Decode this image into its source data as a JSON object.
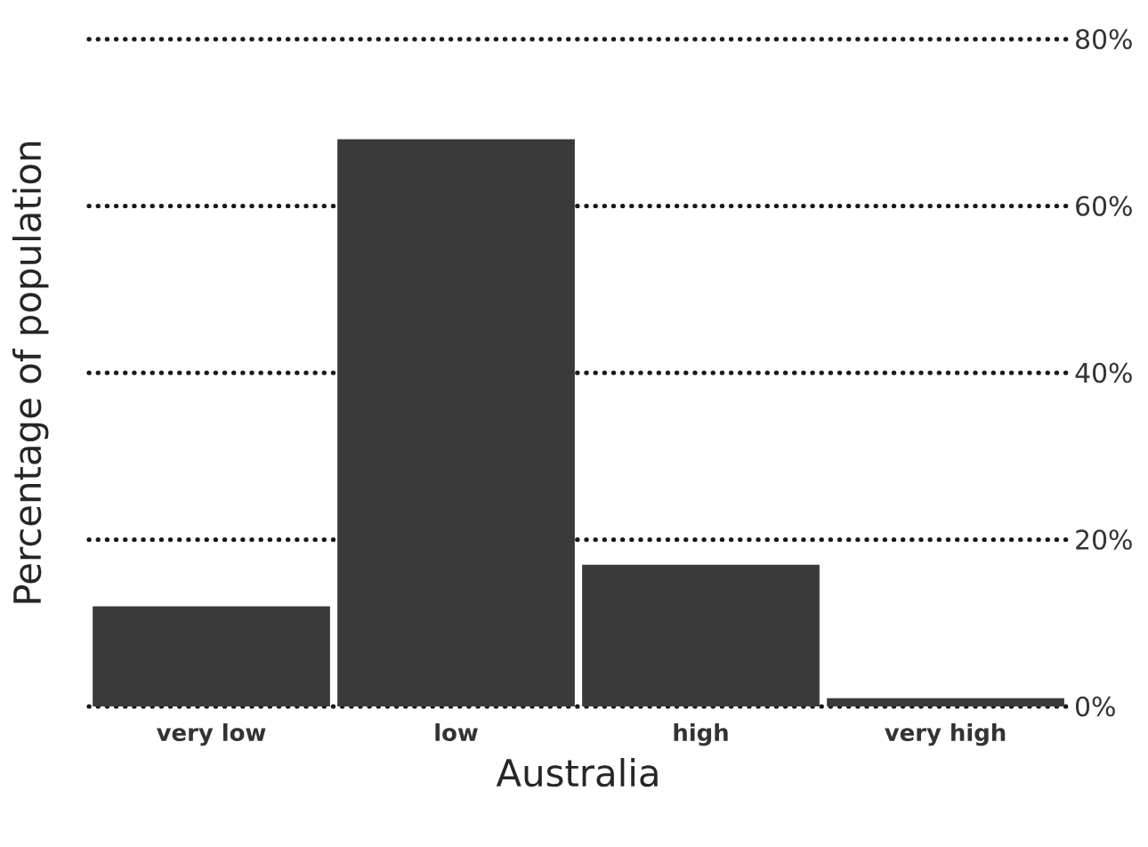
{
  "chart_data": {
    "type": "bar",
    "xlabel": "Australia",
    "ylabel": "Percentage of population",
    "categories": [
      "very low",
      "low",
      "high",
      "very high"
    ],
    "values": [
      12,
      68,
      17,
      1
    ],
    "color": "#3a3a3a",
    "ylim": [
      0,
      80
    ],
    "yticks": [
      {
        "value": 0,
        "label": "0%"
      },
      {
        "value": 20,
        "label": "20%"
      },
      {
        "value": 40,
        "label": "40%"
      },
      {
        "value": 60,
        "label": "60%"
      },
      {
        "value": 80,
        "label": "80%"
      }
    ],
    "grid": "y"
  }
}
